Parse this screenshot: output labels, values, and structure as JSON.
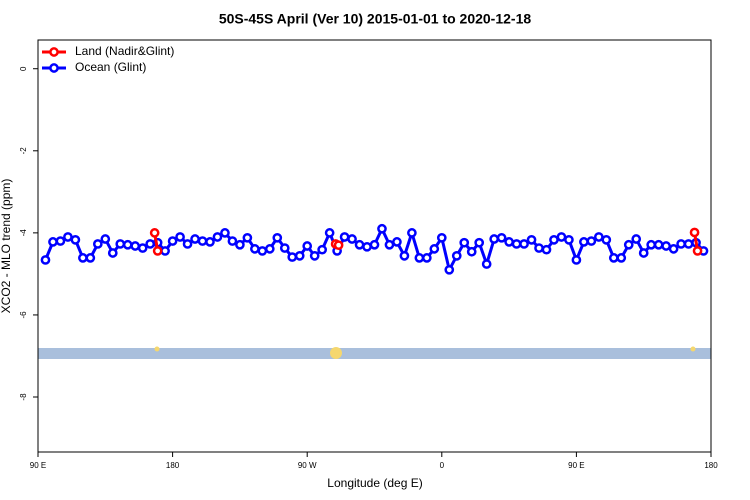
{
  "chart_data": {
    "type": "line",
    "title": "50S-45S April (Ver 10)   2015-01-01 to 2020-12-18",
    "x_label": "Longitude (deg E)",
    "y_label": "XCO2 - MLO trend (ppm)",
    "xlim": [
      90,
      540
    ],
    "ylim": [
      -9.34,
      0.7
    ],
    "xticks": [
      {
        "value": 90,
        "label": "90 E"
      },
      {
        "value": 180,
        "label": "180"
      },
      {
        "value": 270,
        "label": "90 W"
      },
      {
        "value": 360,
        "label": "0"
      },
      {
        "value": 450,
        "label": "90 E"
      },
      {
        "value": 540,
        "label": "180"
      }
    ],
    "yticks": [
      0,
      -2,
      -4,
      -6,
      -8
    ],
    "legend": "top-left",
    "series": [
      {
        "name": "Land (Nadir&Glint)",
        "color": "#ff0000",
        "x": [
          168,
          170,
          289,
          291,
          529,
          531
        ],
        "values": [
          -4.0,
          -4.44,
          -4.27,
          -4.3,
          -3.99,
          -4.44
        ]
      },
      {
        "name": "Ocean (Glint)",
        "color": "#0000ff",
        "x": [
          95,
          100,
          105,
          110,
          115,
          120,
          125,
          130,
          135,
          140,
          145,
          150,
          155,
          160,
          165,
          170,
          175,
          180,
          185,
          190,
          195,
          200,
          205,
          210,
          215,
          220,
          225,
          230,
          235,
          240,
          245,
          250,
          255,
          260,
          265,
          270,
          275,
          280,
          285,
          290,
          295,
          300,
          305,
          310,
          315,
          320,
          325,
          330,
          335,
          340,
          345,
          350,
          355,
          360,
          365,
          370,
          375,
          380,
          385,
          390,
          395,
          400,
          405,
          410,
          415,
          420,
          425,
          430,
          435,
          440,
          445,
          450,
          455,
          460,
          465,
          470,
          475,
          480,
          485,
          490,
          495,
          500,
          505,
          510,
          515,
          520,
          525,
          530,
          535
        ],
        "values": [
          -4.66,
          -4.22,
          -4.2,
          -4.1,
          -4.17,
          -4.61,
          -4.61,
          -4.27,
          -4.15,
          -4.49,
          -4.27,
          -4.29,
          -4.32,
          -4.37,
          -4.27,
          -4.24,
          -4.44,
          -4.2,
          -4.1,
          -4.27,
          -4.15,
          -4.2,
          -4.22,
          -4.1,
          -4.0,
          -4.2,
          -4.29,
          -4.12,
          -4.39,
          -4.44,
          -4.39,
          -4.12,
          -4.37,
          -4.59,
          -4.56,
          -4.32,
          -4.56,
          -4.41,
          -4.0,
          -4.44,
          -4.1,
          -4.15,
          -4.29,
          -4.34,
          -4.29,
          -3.9,
          -4.29,
          -4.22,
          -4.56,
          -4.0,
          -4.61,
          -4.61,
          -4.39,
          -4.12,
          -4.9,
          -4.56,
          -4.24,
          -4.46,
          -4.24,
          -4.76,
          -4.15,
          -4.12,
          -4.22,
          -4.27,
          -4.27,
          -4.17,
          -4.37,
          -4.41,
          -4.17,
          -4.1,
          -4.17,
          -4.66,
          -4.22,
          -4.2,
          -4.1,
          -4.17,
          -4.61,
          -4.61,
          -4.29,
          -4.15,
          -4.49,
          -4.29,
          -4.29,
          -4.32,
          -4.39,
          -4.27,
          -4.27,
          -4.24,
          -4.44
        ]
      }
    ]
  }
}
